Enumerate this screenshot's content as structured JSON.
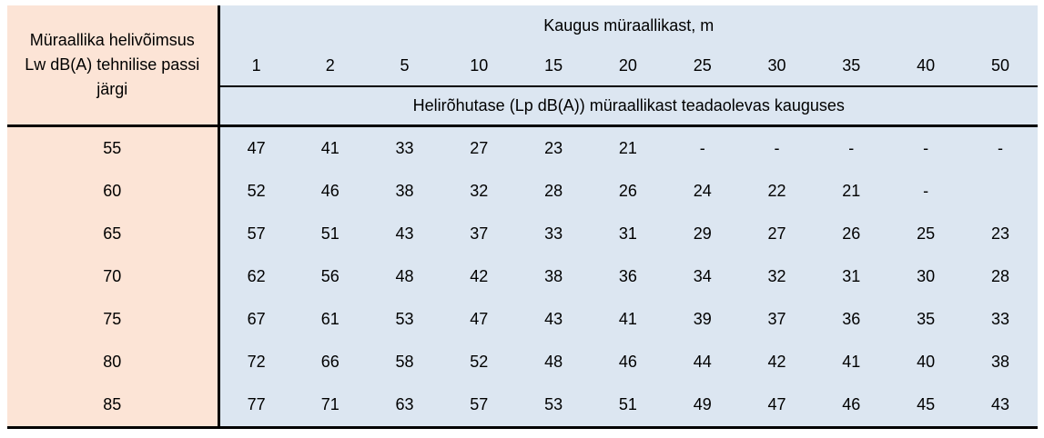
{
  "chart_data": {
    "type": "table",
    "row_header": "Müraallika helivõimsus Lw dB(A) tehnilise passi järgi",
    "column_group_header": "Kaugus müraallikast, m",
    "subheader": "Helirõhutase (Lp dB(A)) müraallikast teadaolevas kauguses",
    "columns": [
      "1",
      "2",
      "5",
      "10",
      "15",
      "20",
      "25",
      "30",
      "35",
      "40",
      "50"
    ],
    "rows": [
      {
        "lw": "55",
        "values": [
          "47",
          "41",
          "33",
          "27",
          "23",
          "21",
          "-",
          "-",
          "-",
          "-",
          "-"
        ]
      },
      {
        "lw": "60",
        "values": [
          "52",
          "46",
          "38",
          "32",
          "28",
          "26",
          "24",
          "22",
          "21",
          "-",
          ""
        ]
      },
      {
        "lw": "65",
        "values": [
          "57",
          "51",
          "43",
          "37",
          "33",
          "31",
          "29",
          "27",
          "26",
          "25",
          "23"
        ]
      },
      {
        "lw": "70",
        "values": [
          "62",
          "56",
          "48",
          "42",
          "38",
          "36",
          "34",
          "32",
          "31",
          "30",
          "28"
        ]
      },
      {
        "lw": "75",
        "values": [
          "67",
          "61",
          "53",
          "47",
          "43",
          "41",
          "39",
          "37",
          "36",
          "35",
          "33"
        ]
      },
      {
        "lw": "80",
        "values": [
          "72",
          "66",
          "58",
          "52",
          "48",
          "46",
          "44",
          "42",
          "41",
          "40",
          "38"
        ]
      },
      {
        "lw": "85",
        "values": [
          "77",
          "71",
          "63",
          "57",
          "53",
          "51",
          "49",
          "47",
          "46",
          "45",
          "43"
        ]
      }
    ]
  },
  "colors": {
    "row_header_background": "#fce4d6",
    "data_background": "#dce6f1",
    "border": "#000000",
    "text": "#000000"
  }
}
